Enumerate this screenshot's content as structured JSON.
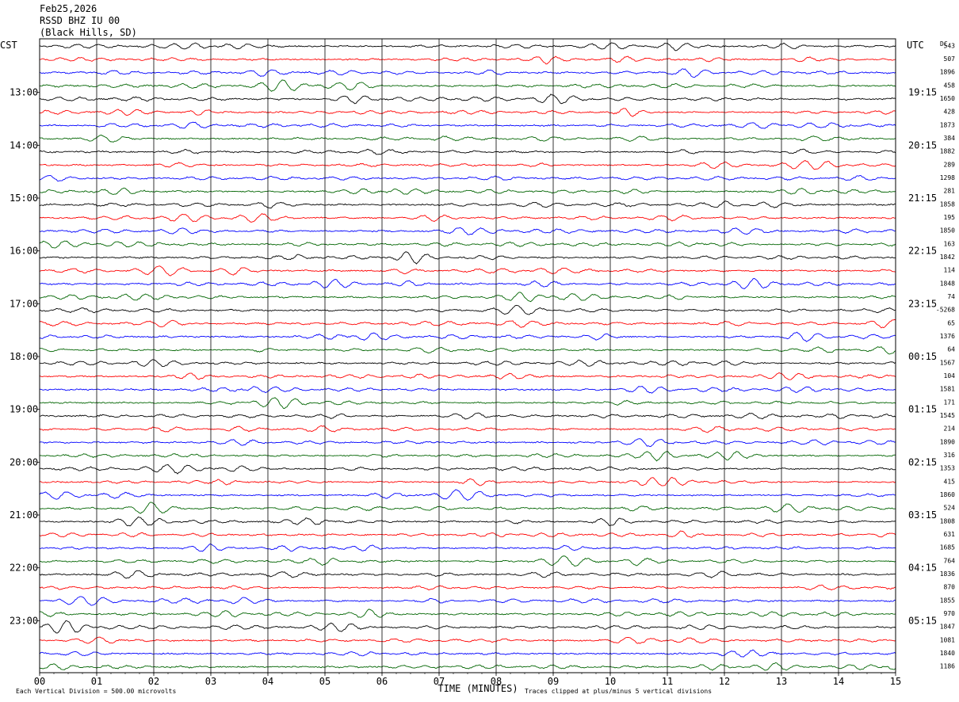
{
  "header": {
    "date": "Feb25,2026",
    "station": "RSSD BHZ IU 00",
    "location": "(Black Hills, SD)"
  },
  "left_timezone": "CST",
  "right_timezone": "UTC",
  "dc_label": "DC",
  "footer": {
    "xlabel": "TIME (MINUTES)",
    "scale_note": "Each Vertical Division =  500.00 microvolts",
    "clip_note": "Traces clipped at plus/minus 5 vertical divisions"
  },
  "colors": {
    "trace_cycle": [
      "#000000",
      "#ff0000",
      "#0000ff",
      "#006400"
    ],
    "grid": "#000000",
    "background": "#ffffff"
  },
  "chart_data": {
    "type": "line",
    "title": "RSSD BHZ IU 00",
    "xlabel": "TIME (MINUTES)",
    "ylabel": "",
    "xlim": [
      0,
      15
    ],
    "x_ticks": [
      "00",
      "01",
      "02",
      "03",
      "04",
      "05",
      "06",
      "07",
      "08",
      "09",
      "10",
      "11",
      "12",
      "13",
      "14",
      "15"
    ],
    "row_count": 48,
    "row_minutes": 15,
    "left_hour_labels": [
      "13:00",
      "14:00",
      "15:00",
      "16:00",
      "17:00",
      "18:00",
      "19:00",
      "20:00",
      "21:00",
      "22:00",
      "23:00"
    ],
    "right_hour_labels": [
      "19:15",
      "20:15",
      "21:15",
      "22:15",
      "23:15",
      "00:15",
      "01:15",
      "02:15",
      "03:15",
      "04:15",
      "05:15"
    ],
    "dc_offsets": [
      "543",
      "507",
      "1896",
      "458",
      "1650",
      "428",
      "1873",
      "384",
      "1882",
      "289",
      "1298",
      "281",
      "1858",
      "195",
      "1850",
      "163",
      "1842",
      "114",
      "1848",
      "74",
      "-5268",
      "65",
      "1376",
      "64",
      "1567",
      "104",
      "1581",
      "171",
      "1545",
      "214",
      "1890",
      "316",
      "1353",
      "415",
      "1860",
      "524",
      "1808",
      "631",
      "1685",
      "764",
      "1836",
      "870",
      "1855",
      "970",
      "1847",
      "1081",
      "1840",
      "1186"
    ]
  }
}
